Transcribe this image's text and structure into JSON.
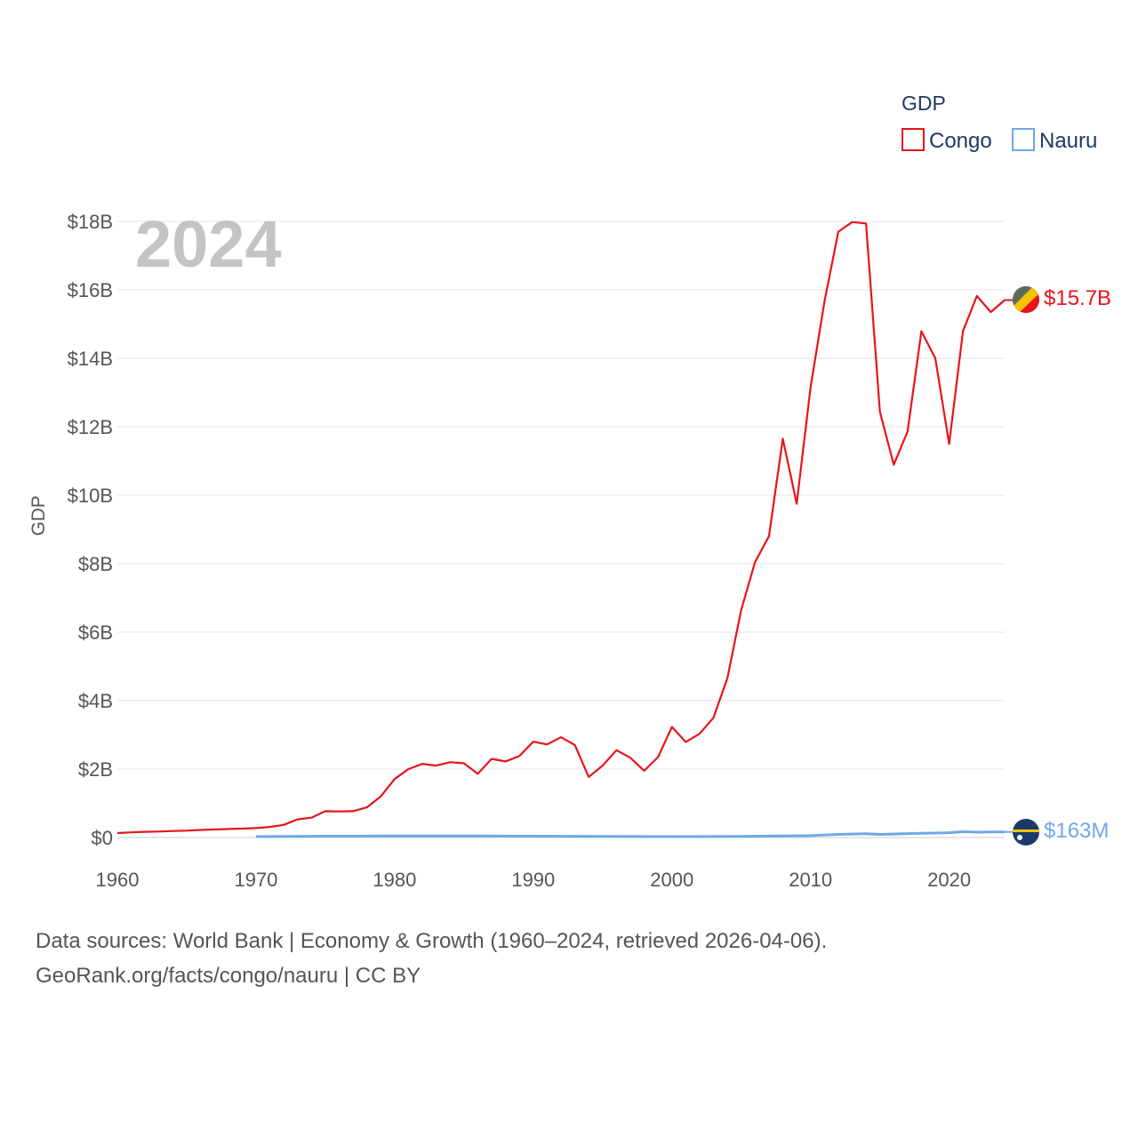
{
  "chart_data": {
    "type": "line",
    "year_label": "2024",
    "ylabel": "GDP",
    "xlim": [
      1960,
      2024
    ],
    "ylim": [
      0,
      18000000000
    ],
    "xticks": [
      {
        "value": 1960,
        "label": "1960"
      },
      {
        "value": 1970,
        "label": "1970"
      },
      {
        "value": 1980,
        "label": "1980"
      },
      {
        "value": 1990,
        "label": "1990"
      },
      {
        "value": 2000,
        "label": "2000"
      },
      {
        "value": 2010,
        "label": "2010"
      },
      {
        "value": 2020,
        "label": "2020"
      }
    ],
    "yticks": [
      {
        "value": 0,
        "label": "$0"
      },
      {
        "value": 2000000000,
        "label": "$2B"
      },
      {
        "value": 4000000000,
        "label": "$4B"
      },
      {
        "value": 6000000000,
        "label": "$6B"
      },
      {
        "value": 8000000000,
        "label": "$8B"
      },
      {
        "value": 10000000000,
        "label": "$10B"
      },
      {
        "value": 12000000000,
        "label": "$12B"
      },
      {
        "value": 14000000000,
        "label": "$14B"
      },
      {
        "value": 16000000000,
        "label": "$16B"
      },
      {
        "value": 18000000000,
        "label": "$18B"
      }
    ],
    "grid": true,
    "legend": {
      "title": "GDP",
      "position": "top-right"
    },
    "series": [
      {
        "name": "Congo",
        "color": "#e8141b",
        "end_label": "$15.7B",
        "flag": "congo-flag",
        "x": [
          1960,
          1961,
          1962,
          1963,
          1964,
          1965,
          1966,
          1967,
          1968,
          1969,
          1970,
          1971,
          1972,
          1973,
          1974,
          1975,
          1976,
          1977,
          1978,
          1979,
          1980,
          1981,
          1982,
          1983,
          1984,
          1985,
          1986,
          1987,
          1988,
          1989,
          1990,
          1991,
          1992,
          1993,
          1994,
          1995,
          1996,
          1997,
          1998,
          1999,
          2000,
          2001,
          2002,
          2003,
          2004,
          2005,
          2006,
          2007,
          2008,
          2009,
          2010,
          2011,
          2012,
          2013,
          2014,
          2015,
          2016,
          2017,
          2018,
          2019,
          2020,
          2021,
          2022,
          2023,
          2024
        ],
        "values": [
          130000000,
          150000000,
          165000000,
          175000000,
          190000000,
          200000000,
          220000000,
          235000000,
          250000000,
          260000000,
          275000000,
          310000000,
          370000000,
          530000000,
          580000000,
          770000000,
          760000000,
          770000000,
          880000000,
          1200000000,
          1710000000,
          2000000000,
          2150000000,
          2100000000,
          2200000000,
          2170000000,
          1860000000,
          2300000000,
          2220000000,
          2380000000,
          2800000000,
          2720000000,
          2930000000,
          2700000000,
          1770000000,
          2100000000,
          2550000000,
          2330000000,
          1950000000,
          2350000000,
          3230000000,
          2790000000,
          3030000000,
          3500000000,
          4650000000,
          6650000000,
          8050000000,
          8800000000,
          11650000000,
          9750000000,
          13150000000,
          15650000000,
          17700000000,
          17980000000,
          17940000000,
          12440000000,
          10890000000,
          11860000000,
          14790000000,
          14000000000,
          11500000000,
          14800000000,
          15820000000,
          15350000000,
          15700000000
        ]
      },
      {
        "name": "Nauru",
        "color": "#6fa8e6",
        "end_label": "$163M",
        "flag": "nauru-flag",
        "x": [
          1970,
          1975,
          1980,
          1985,
          1990,
          1995,
          2000,
          2005,
          2010,
          2012,
          2013,
          2014,
          2015,
          2016,
          2017,
          2018,
          2019,
          2020,
          2021,
          2022,
          2023,
          2024
        ],
        "values": [
          25000000,
          40000000,
          45000000,
          45000000,
          40000000,
          35000000,
          25000000,
          30000000,
          55000000,
          90000000,
          100000000,
          110000000,
          90000000,
          100000000,
          115000000,
          125000000,
          130000000,
          140000000,
          170000000,
          155000000,
          160000000,
          163000000
        ]
      }
    ]
  },
  "source": {
    "line1": "Data sources: World Bank | Economy & Growth (1960–2024, retrieved 2026-04-06).",
    "line2": "GeoRank.org/facts/congo/nauru | CC BY"
  }
}
